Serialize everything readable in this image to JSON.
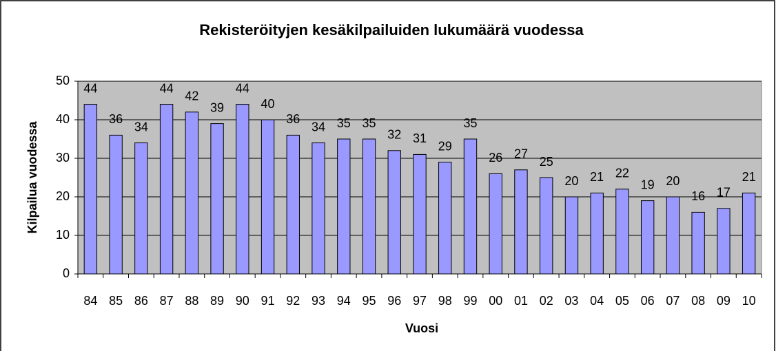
{
  "chart_data": {
    "type": "bar",
    "title": "Rekisteröityjen kesäkilpailuiden lukumäärä vuodessa",
    "xlabel": "Vuosi",
    "ylabel": "Kilpailua vuodessa",
    "categories": [
      "84",
      "85",
      "86",
      "87",
      "88",
      "89",
      "90",
      "91",
      "92",
      "93",
      "94",
      "95",
      "96",
      "97",
      "98",
      "99",
      "00",
      "01",
      "02",
      "03",
      "04",
      "05",
      "06",
      "07",
      "08",
      "09",
      "10"
    ],
    "values": [
      44,
      36,
      34,
      44,
      42,
      39,
      44,
      40,
      36,
      34,
      35,
      35,
      32,
      31,
      29,
      35,
      26,
      27,
      25,
      20,
      21,
      22,
      19,
      20,
      16,
      17,
      21
    ],
    "color": "#9999ff",
    "ylim": [
      0,
      50
    ],
    "yticks": [
      0,
      10,
      20,
      30,
      40,
      50
    ],
    "grid": true
  }
}
